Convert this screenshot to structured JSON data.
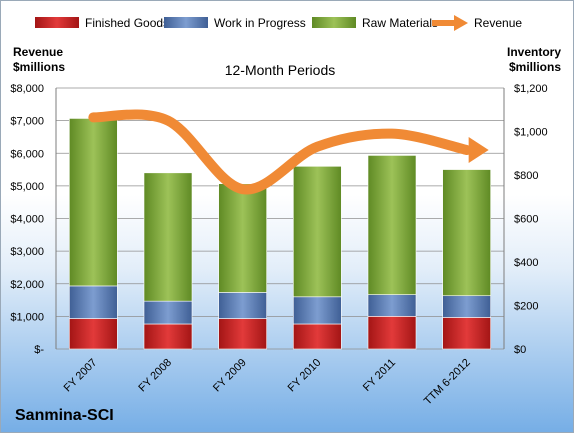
{
  "company": "Sanmina-SCI",
  "colors": {
    "finished_goods": "#d42020",
    "work_in_progress": "#5b7fb8",
    "raw_materials": "#7fa63d",
    "revenue": "#f08a35"
  },
  "chart_data": {
    "type": "bar",
    "stacked": true,
    "title": "12-Month Periods",
    "ylabel_left": [
      "Revenue",
      "$millions"
    ],
    "ylabel_right": [
      "Inventory",
      "$millions"
    ],
    "categories": [
      "FY 2007",
      "FY 2008",
      "FY 2009",
      "FY 2010",
      "FY 2011",
      "TTM 6-2012"
    ],
    "series": [
      {
        "name": "Finished Goods",
        "axis": "right",
        "values": [
          140,
          115,
          140,
          115,
          150,
          145
        ]
      },
      {
        "name": "Work in Progress",
        "axis": "right",
        "values": [
          150,
          105,
          120,
          125,
          100,
          100
        ]
      },
      {
        "name": "Raw Materials",
        "axis": "right",
        "values": [
          770,
          590,
          500,
          600,
          640,
          580
        ]
      },
      {
        "name": "Revenue",
        "type": "line",
        "axis": "left",
        "values": [
          7100,
          7000,
          4900,
          6200,
          6600,
          6100
        ]
      }
    ],
    "ylim_left": [
      0,
      8000
    ],
    "ylim_right": [
      0,
      1200
    ],
    "yticks_left": [
      "$-",
      "$1,000",
      "$2,000",
      "$3,000",
      "$4,000",
      "$5,000",
      "$6,000",
      "$7,000",
      "$8,000"
    ],
    "yticks_right": [
      "$0",
      "$200",
      "$400",
      "$600",
      "$800",
      "$1,000",
      "$1,200"
    ],
    "grid": true,
    "legend_position": "top"
  }
}
